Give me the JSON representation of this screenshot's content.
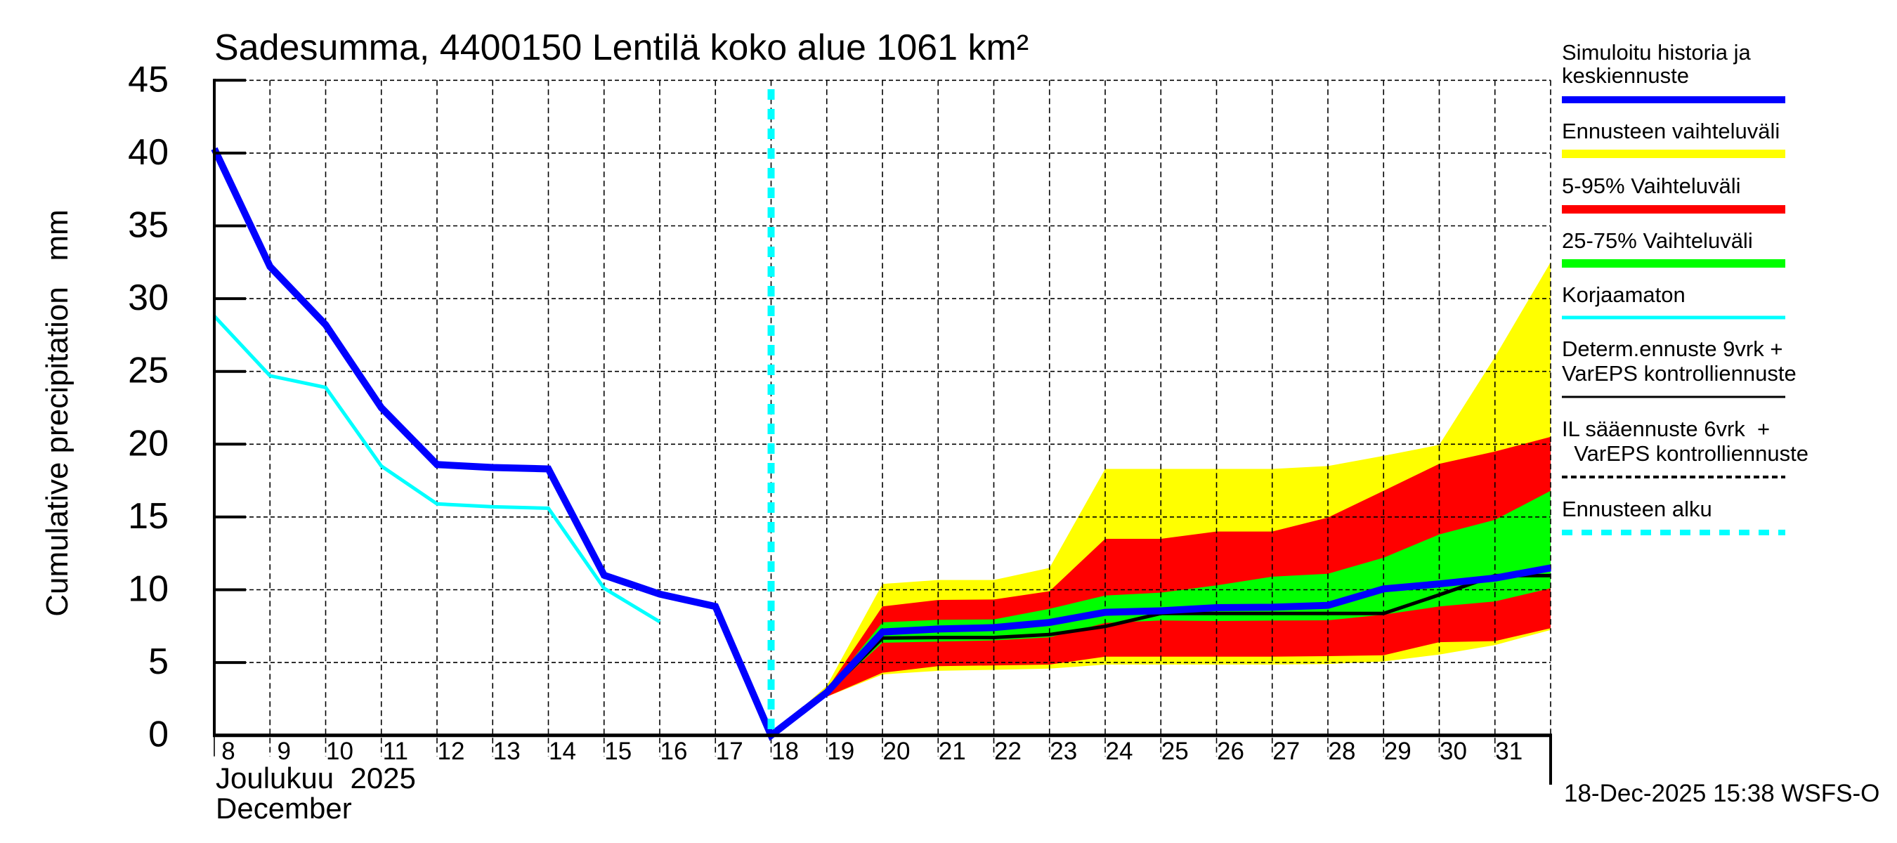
{
  "chart_data": {
    "type": "area",
    "title": "Sadesumma, 4400150 Lentilä koko alue 1061 km²",
    "ylabel": "Cumulative precipitation   mm",
    "xlabel_line1": "Joulukuu  2025",
    "xlabel_line2": "December",
    "ylim": [
      0,
      45
    ],
    "xlim": [
      8,
      32
    ],
    "grid": true,
    "yticks": [
      0,
      5,
      10,
      15,
      20,
      25,
      30,
      35,
      40,
      45
    ],
    "xtick_labels": [
      "8",
      "9",
      "10",
      "11",
      "12",
      "13",
      "14",
      "15",
      "16",
      "17",
      "18",
      "19",
      "20",
      "21",
      "22",
      "23",
      "24",
      "25",
      "26",
      "27",
      "28",
      "29",
      "30",
      "31"
    ],
    "forecast_start_day": 18,
    "timestamp": "18-Dec-2025 15:38 WSFS-O",
    "legend_position": "right",
    "colors": {
      "simulated": "#0000ff",
      "range_full": "#ffff00",
      "range_5_95": "#ff0000",
      "range_25_75": "#00ff00",
      "uncorrected": "#00ffff",
      "determ": "#000000",
      "forecast_start": "#00ffff"
    },
    "bands": {
      "x": [
        18,
        19,
        20,
        21,
        22,
        23,
        24,
        25,
        26,
        27,
        28,
        29,
        30,
        31,
        32
      ],
      "full_upper": [
        0,
        3.4,
        10.4,
        10.67,
        10.67,
        11.5,
        18.3,
        18.3,
        18.3,
        18.3,
        18.5,
        19.2,
        19.95,
        26.0,
        32.5
      ],
      "full_lower": [
        0,
        2.65,
        4.18,
        4.43,
        4.5,
        4.58,
        4.86,
        4.86,
        4.86,
        4.86,
        4.9,
        5.07,
        5.55,
        6.2,
        7.24
      ],
      "p95": [
        0,
        3.15,
        8.85,
        9.3,
        9.33,
        9.9,
        13.5,
        13.5,
        14.0,
        14.0,
        14.96,
        16.8,
        18.65,
        19.5,
        20.5
      ],
      "p5": [
        0,
        2.65,
        4.3,
        4.75,
        4.8,
        4.86,
        5.4,
        5.4,
        5.4,
        5.4,
        5.44,
        5.5,
        6.4,
        6.47,
        7.36
      ],
      "p75": [
        0,
        3.05,
        7.76,
        7.93,
        7.96,
        8.69,
        9.6,
        9.8,
        10.3,
        10.9,
        11.1,
        12.2,
        13.8,
        14.8,
        16.8
      ],
      "p25": [
        0,
        2.85,
        6.36,
        6.44,
        6.52,
        6.73,
        7.72,
        7.89,
        7.85,
        7.88,
        7.9,
        8.29,
        8.85,
        9.2,
        10.1
      ]
    },
    "series": [
      {
        "name": "Simuloitu historia ja keskiennuste",
        "x": [
          8,
          9,
          10,
          11,
          12,
          13,
          14,
          15,
          16,
          17,
          18,
          19,
          20,
          21,
          22,
          23,
          24,
          25,
          26,
          27,
          28,
          29,
          30,
          31,
          32
        ],
        "values": [
          40.3,
          32.2,
          28.2,
          22.5,
          18.6,
          18.4,
          18.3,
          11.0,
          9.7,
          8.85,
          0,
          2.95,
          7.1,
          7.3,
          7.4,
          7.75,
          8.45,
          8.55,
          8.77,
          8.8,
          8.93,
          10.06,
          10.4,
          10.8,
          11.5
        ]
      },
      {
        "name": "Korjaamaton",
        "x": [
          8,
          9,
          10,
          11,
          12,
          13,
          14,
          15,
          16
        ],
        "values": [
          28.8,
          24.7,
          23.9,
          18.5,
          15.9,
          15.7,
          15.6,
          10.1,
          7.8
        ]
      },
      {
        "name": "Determ.ennuste 9vrk + VarEPS kontrolliennuste",
        "x": [
          18,
          19,
          20,
          21,
          22,
          23,
          24,
          25,
          26,
          27,
          28,
          29,
          30,
          31,
          32
        ],
        "values": [
          0,
          2.9,
          6.68,
          6.72,
          6.72,
          6.92,
          7.48,
          8.37,
          8.37,
          8.37,
          8.37,
          8.37,
          9.65,
          10.97,
          10.97
        ]
      }
    ]
  },
  "legend": [
    {
      "label_lines": [
        "Simuloitu historia ja",
        "keskiennuste"
      ],
      "style": "thick",
      "color": "#0000ff"
    },
    {
      "label_lines": [
        "Ennusteen vaihteluväli"
      ],
      "style": "band",
      "color": "#ffff00"
    },
    {
      "label_lines": [
        "5-95% Vaihteluväli"
      ],
      "style": "band",
      "color": "#ff0000"
    },
    {
      "label_lines": [
        "25-75% Vaihteluväli"
      ],
      "style": "band",
      "color": "#00ff00"
    },
    {
      "label_lines": [
        "Korjaamaton"
      ],
      "style": "thin",
      "color": "#00ffff"
    },
    {
      "label_lines": [
        "Determ.ennuste 9vrk +",
        "VarEPS kontrolliennuste"
      ],
      "style": "solid-black",
      "color": "#000000"
    },
    {
      "label_lines": [
        "IL sääennuste 6vrk  +",
        "  VarEPS kontrolliennuste"
      ],
      "style": "dotted-black",
      "color": "#000000"
    },
    {
      "label_lines": [
        "Ennusteen alku"
      ],
      "style": "dashed-cyan",
      "color": "#00ffff"
    }
  ]
}
